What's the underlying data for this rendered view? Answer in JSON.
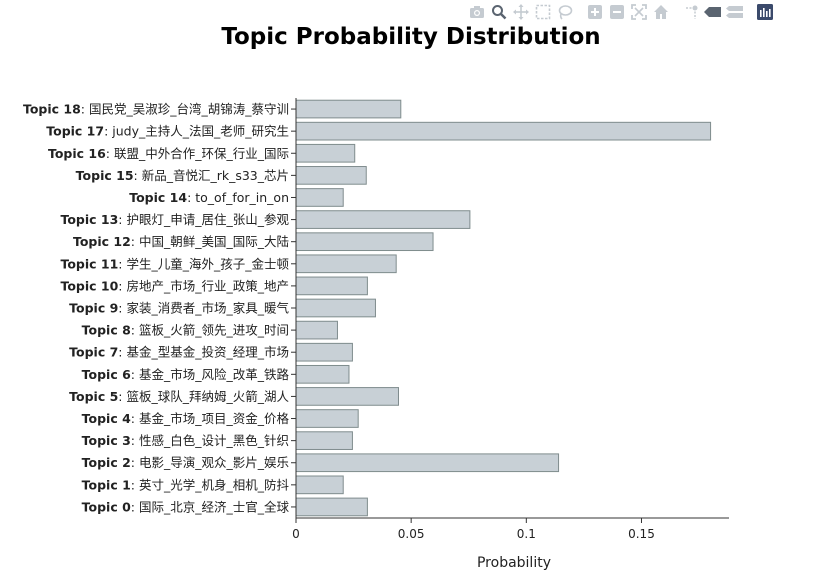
{
  "toolbar": {
    "icons": [
      "camera-icon",
      "zoom-icon",
      "pan-icon",
      "box-select-icon",
      "lasso-select-icon",
      "zoom-in-icon",
      "zoom-out-icon",
      "autoscale-icon",
      "reset-axes-icon",
      "spike-lines-icon",
      "hover-closest-icon",
      "hover-compare-icon",
      "plotly-logo-icon"
    ]
  },
  "chart_data": {
    "type": "bar",
    "orientation": "horizontal",
    "title": "Topic Probability Distribution",
    "xlabel": "Probability",
    "ylabel": "",
    "xlim": [
      0,
      0.188
    ],
    "x_ticks": [
      "0",
      "0.05",
      "0.1",
      "0.15"
    ],
    "x_tick_values": [
      0,
      0.05,
      0.1,
      0.15
    ],
    "bar_color": "#c8d0d6",
    "bar_edge_color": "#7f8c8d",
    "grid": false,
    "categories": [
      {
        "topic": "Topic 0",
        "words": "国际_北京_经济_士官_全球"
      },
      {
        "topic": "Topic 1",
        "words": "英寸_光学_机身_相机_防抖"
      },
      {
        "topic": "Topic 2",
        "words": "电影_导演_观众_影片_娱乐"
      },
      {
        "topic": "Topic 3",
        "words": "性感_白色_设计_黑色_针织"
      },
      {
        "topic": "Topic 4",
        "words": "基金_市场_项目_资金_价格"
      },
      {
        "topic": "Topic 5",
        "words": "篮板_球队_拜纳姆_火箭_湖人"
      },
      {
        "topic": "Topic 6",
        "words": "基金_市场_风险_改革_铁路"
      },
      {
        "topic": "Topic 7",
        "words": "基金_型基金_投资_经理_市场"
      },
      {
        "topic": "Topic 8",
        "words": "篮板_火箭_领先_进攻_时间"
      },
      {
        "topic": "Topic 9",
        "words": "家装_消费者_市场_家具_暖气"
      },
      {
        "topic": "Topic 10",
        "words": "房地产_市场_行业_政策_地产"
      },
      {
        "topic": "Topic 11",
        "words": "学生_儿童_海外_孩子_金士顿"
      },
      {
        "topic": "Topic 12",
        "words": "中国_朝鲜_美国_国际_大陆"
      },
      {
        "topic": "Topic 13",
        "words": "护眼灯_申请_居住_张山_参观"
      },
      {
        "topic": "Topic 14",
        "words": "to_of_for_in_on"
      },
      {
        "topic": "Topic 15",
        "words": "新品_音悦汇_rk_s33_芯片"
      },
      {
        "topic": "Topic 16",
        "words": "联盟_中外合作_环保_行业_国际"
      },
      {
        "topic": "Topic 17",
        "words": "judy_主持人_法国_老师_研究生"
      },
      {
        "topic": "Topic 18",
        "words": "国民党_吴淑珍_台湾_胡锦涛_蔡守训"
      }
    ],
    "values": [
      0.031,
      0.0205,
      0.114,
      0.0245,
      0.027,
      0.0445,
      0.023,
      0.0245,
      0.018,
      0.0345,
      0.031,
      0.0435,
      0.0595,
      0.0755,
      0.0205,
      0.0305,
      0.0255,
      0.18,
      0.0455
    ]
  }
}
